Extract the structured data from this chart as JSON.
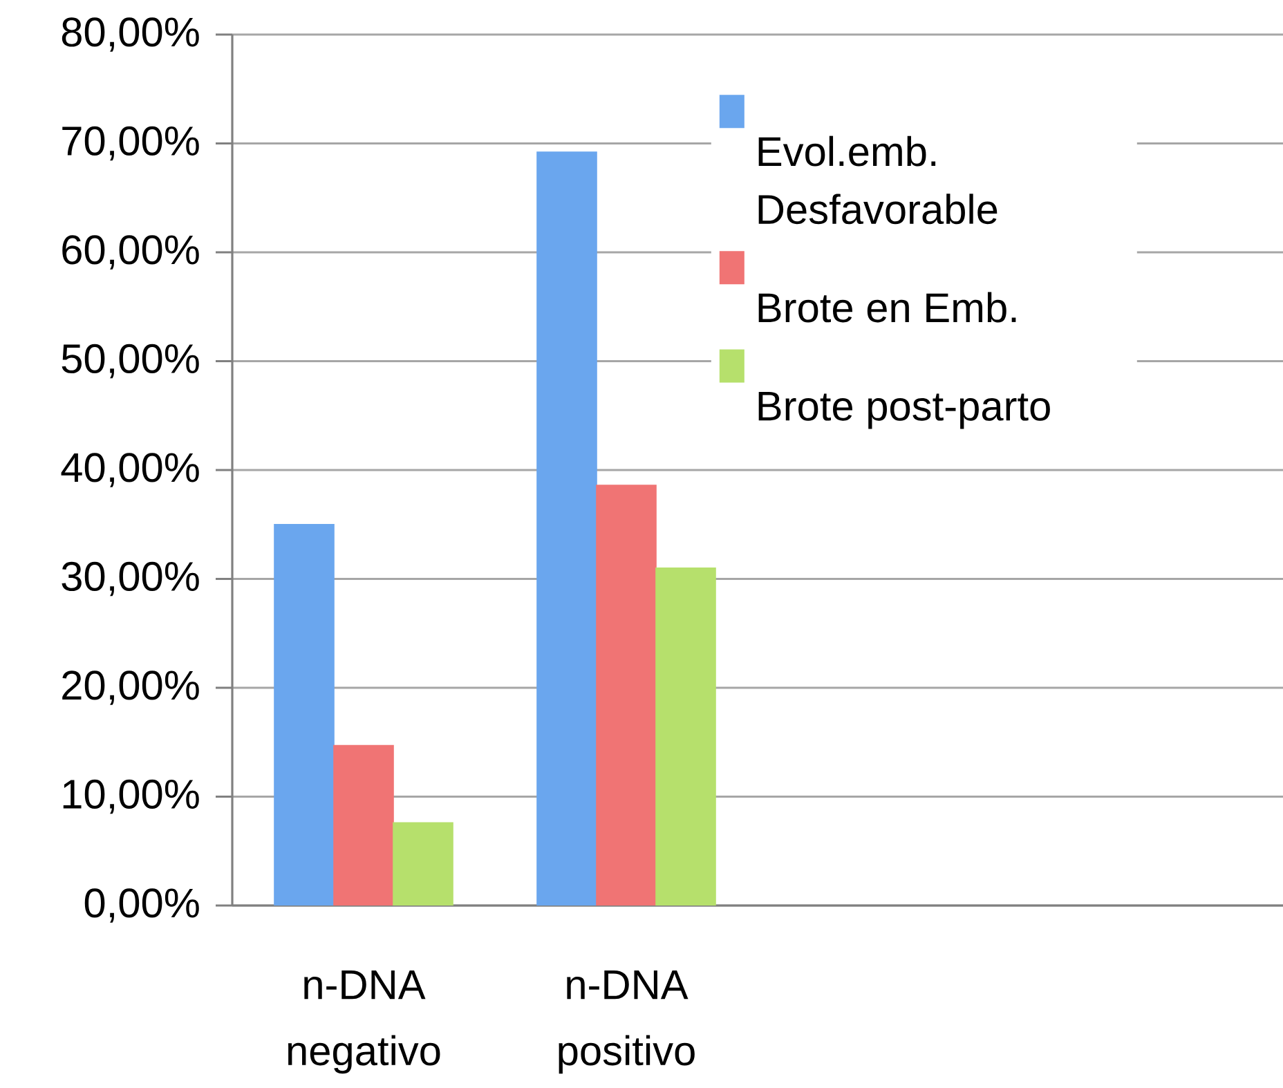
{
  "chart_data": {
    "type": "bar",
    "categories": [
      "n-DNA negativo",
      "n-DNA positivo",
      null,
      null
    ],
    "series": [
      {
        "name": "Evol.emb. Desfavorable",
        "color": "#6aa6ee",
        "values": [
          35.0,
          69.2,
          null,
          null
        ]
      },
      {
        "name": "Brote en Emb.",
        "color": "#f07474",
        "values": [
          14.7,
          38.6,
          null,
          null
        ]
      },
      {
        "name": "Brote post-parto",
        "color": "#b6e06c",
        "values": [
          7.6,
          31.0,
          null,
          null
        ]
      }
    ],
    "ylim": [
      0,
      80
    ],
    "yticks": [
      {
        "value": 0,
        "label": "0,00%"
      },
      {
        "value": 10,
        "label": "10,00%"
      },
      {
        "value": 20,
        "label": "20,00%"
      },
      {
        "value": 30,
        "label": "30,00%"
      },
      {
        "value": 40,
        "label": "40,00%"
      },
      {
        "value": 50,
        "label": "50,00%"
      },
      {
        "value": 60,
        "label": "60,00%"
      },
      {
        "value": 70,
        "label": "70,00%"
      },
      {
        "value": 80,
        "label": "80,00%"
      }
    ],
    "grid": "y",
    "legend": "top right"
  }
}
